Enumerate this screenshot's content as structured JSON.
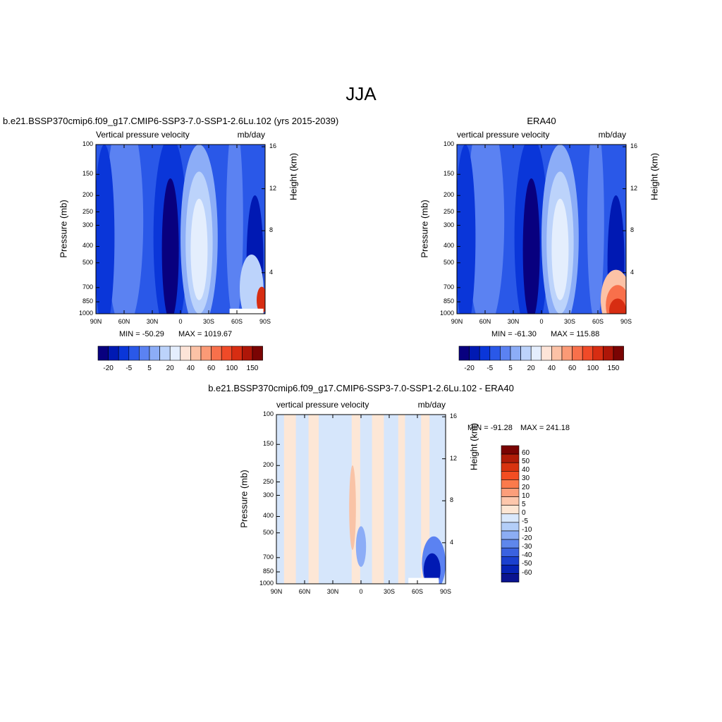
{
  "figure_title": "JJA",
  "colors": {
    "blue_scale": [
      "#08007f",
      "#0019b3",
      "#0a36d9",
      "#2a58e8",
      "#5b82f2",
      "#8cadf7",
      "#bcd3fb",
      "#e4eefd"
    ],
    "red_scale": [
      "#fde4d8",
      "#fcc2a6",
      "#fb9a76",
      "#f8704b",
      "#f04a28",
      "#d72d12",
      "#ae1608",
      "#7a0403"
    ],
    "diff_pos": "#fde7d6",
    "diff_neg": "#d6e6fb"
  },
  "chart_data": [
    {
      "type": "heatmap",
      "title": "b.e21.BSSP370cmip6.f09_g17.CMIP6-SSP3-7.0-SSP1-2.6Lu.102 (yrs 2015-2039)",
      "left_subtitle": "Vertical pressure velocity",
      "right_subtitle": "mb/day",
      "ylabel": "Pressure (mb)",
      "ylabel_right": "Height (km)",
      "x_ticks": [
        "90N",
        "60N",
        "30N",
        "0",
        "30S",
        "60S",
        "90S"
      ],
      "y_ticks": [
        "100",
        "150",
        "200",
        "250",
        "300",
        "400",
        "500",
        "700",
        "850",
        "1000"
      ],
      "y_right_ticks": [
        "16",
        "12",
        "8",
        "4"
      ],
      "min_label": "MIN = -50.29",
      "max_label": "MAX = 1019.67",
      "colorbar_labels": [
        "-20",
        "-5",
        "5",
        "20",
        "40",
        "60",
        "100",
        "150"
      ]
    },
    {
      "type": "heatmap",
      "title": "ERA40",
      "left_subtitle": "vertical pressure velocity",
      "right_subtitle": "mb/day",
      "ylabel": "Pressure (mb)",
      "ylabel_right": "Height (km)",
      "x_ticks": [
        "90N",
        "60N",
        "30N",
        "0",
        "30S",
        "60S",
        "90S"
      ],
      "y_ticks": [
        "100",
        "150",
        "200",
        "250",
        "300",
        "400",
        "500",
        "700",
        "850",
        "1000"
      ],
      "y_right_ticks": [
        "16",
        "12",
        "8",
        "4"
      ],
      "min_label": "MIN = -61.30",
      "max_label": "MAX = 115.88",
      "colorbar_labels": [
        "-20",
        "-5",
        "5",
        "20",
        "40",
        "60",
        "100",
        "150"
      ]
    },
    {
      "type": "heatmap",
      "title": "b.e21.BSSP370cmip6.f09_g17.CMIP6-SSP3-7.0-SSP1-2.6Lu.102 - ERA40",
      "left_subtitle": "vertical pressure velocity",
      "right_subtitle": "mb/day",
      "ylabel": "Pressure (mb)",
      "ylabel_right": "Height (km)",
      "x_ticks": [
        "90N",
        "60N",
        "30N",
        "0",
        "30S",
        "60S",
        "90S"
      ],
      "y_ticks": [
        "100",
        "150",
        "200",
        "250",
        "300",
        "400",
        "500",
        "700",
        "850",
        "1000"
      ],
      "y_right_ticks": [
        "16",
        "12",
        "8",
        "4"
      ],
      "min_label": "MIN = -91.28",
      "max_label": "MAX = 241.18",
      "colorbar_labels": [
        "60",
        "50",
        "40",
        "30",
        "20",
        "10",
        "5",
        "0",
        "-5",
        "-10",
        "-20",
        "-30",
        "-40",
        "-50",
        "-60"
      ]
    }
  ]
}
